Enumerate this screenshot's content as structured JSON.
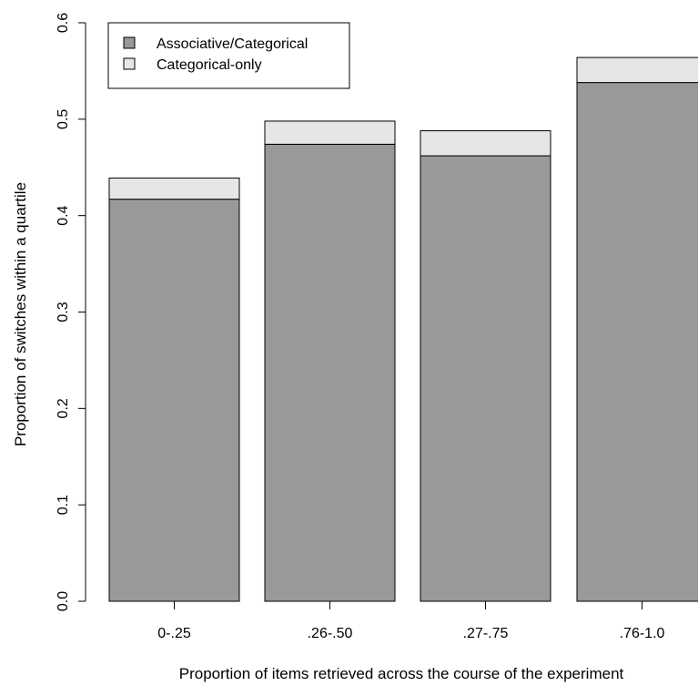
{
  "chart_data": {
    "type": "bar",
    "stacked": true,
    "categories": [
      "0-.25",
      ".26-.50",
      ".27-.75",
      ".76-1.0"
    ],
    "series": [
      {
        "name": "Associative/Categorical",
        "values": [
          0.417,
          0.474,
          0.462,
          0.538
        ],
        "color": "#999999"
      },
      {
        "name": "Categorical-only",
        "values": [
          0.022,
          0.024,
          0.026,
          0.026
        ],
        "color": "#e6e6e6"
      }
    ],
    "xlabel": "Proportion of items retrieved across the course of the experiment",
    "ylabel": "Proportion of switches within a quartile",
    "ylim": [
      0,
      0.6
    ],
    "yticks": [
      0.0,
      0.1,
      0.2,
      0.3,
      0.4,
      0.5,
      0.6
    ],
    "ytick_labels": [
      "0.0",
      "0.1",
      "0.2",
      "0.3",
      "0.4",
      "0.5",
      "0.6"
    ],
    "legend_position": "top-left",
    "grid": false
  }
}
